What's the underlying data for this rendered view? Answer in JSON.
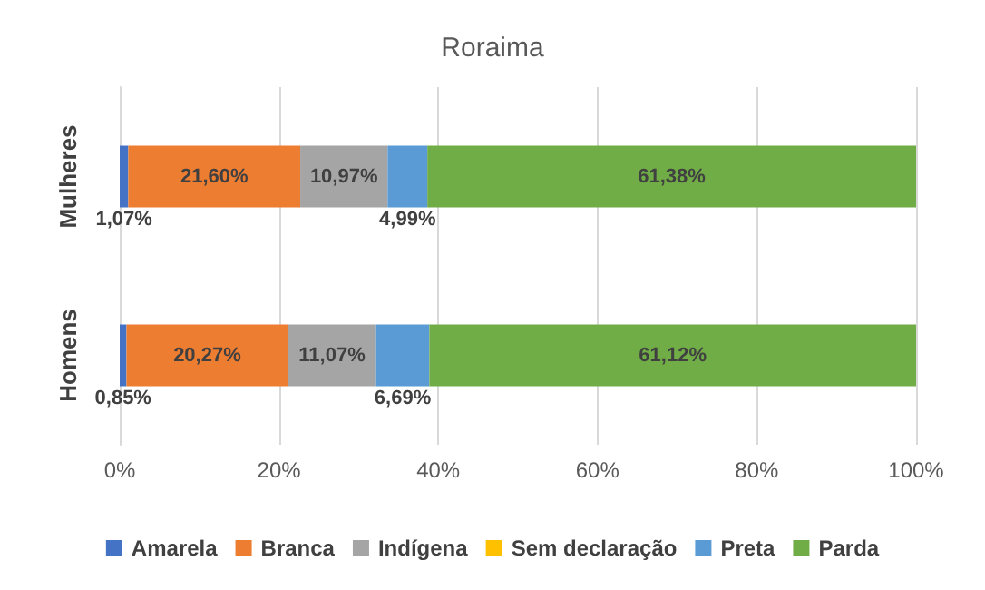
{
  "chart_data": {
    "type": "bar",
    "title": "Roraima",
    "orientation": "horizontal",
    "stacked": true,
    "categories": [
      "Mulheres",
      "Homens"
    ],
    "series": [
      {
        "name": "Amarela",
        "color": "#4472c4",
        "values": [
          1.07,
          0.85
        ],
        "value_labels": [
          "1,07%",
          "0,85%"
        ]
      },
      {
        "name": "Branca",
        "color": "#ed7d31",
        "values": [
          21.6,
          20.27
        ],
        "value_labels": [
          "21,60%",
          "20,27%"
        ]
      },
      {
        "name": "Indígena",
        "color": "#a5a5a5",
        "values": [
          10.97,
          11.07
        ],
        "value_labels": [
          "10,97%",
          "11,07%"
        ]
      },
      {
        "name": "Sem declaração",
        "color": "#ffc000",
        "values": [
          0,
          0
        ],
        "value_labels": [
          null,
          null
        ]
      },
      {
        "name": "Preta",
        "color": "#5b9bd5",
        "values": [
          4.99,
          6.69
        ],
        "value_labels": [
          "4,99%",
          "6,69%"
        ]
      },
      {
        "name": "Parda",
        "color": "#70ad47",
        "values": [
          61.38,
          61.12
        ],
        "value_labels": [
          "61,38%",
          "61,12%"
        ]
      }
    ],
    "xlim": [
      0,
      100
    ],
    "xticks": [
      {
        "value": 0,
        "label": "0%"
      },
      {
        "value": 20,
        "label": "20%"
      },
      {
        "value": 40,
        "label": "40%"
      },
      {
        "value": 60,
        "label": "60%"
      },
      {
        "value": 80,
        "label": "80%"
      },
      {
        "value": 100,
        "label": "100%"
      }
    ],
    "grid": "x",
    "legend": "bottom"
  }
}
